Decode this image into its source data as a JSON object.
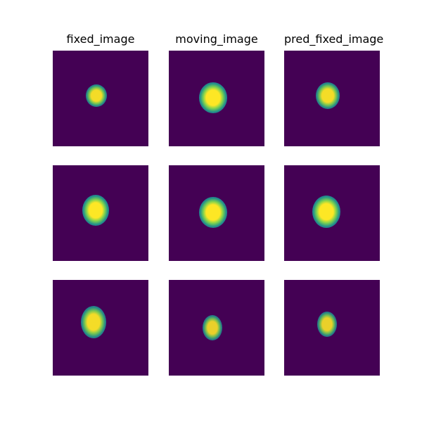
{
  "columns": [
    "fixed_image",
    "moving_image",
    "pred_fixed_image"
  ],
  "colormap": {
    "name": "viridis",
    "background": "#440154",
    "mid": "#21918c",
    "high": "#fde725"
  },
  "panels": [
    {
      "row": 0,
      "col": 0,
      "label": "fixed_image-row-1",
      "intensity": 0.95
    },
    {
      "row": 0,
      "col": 1,
      "label": "moving_image-row-1",
      "intensity": 1.0
    },
    {
      "row": 0,
      "col": 2,
      "label": "pred_fixed_image-row-1",
      "intensity": 0.95
    },
    {
      "row": 1,
      "col": 0,
      "label": "fixed_image-row-2",
      "intensity": 1.0
    },
    {
      "row": 1,
      "col": 1,
      "label": "moving_image-row-2",
      "intensity": 1.0
    },
    {
      "row": 1,
      "col": 2,
      "label": "pred_fixed_image-row-2",
      "intensity": 1.0
    },
    {
      "row": 2,
      "col": 0,
      "label": "fixed_image-row-3",
      "intensity": 0.95
    },
    {
      "row": 2,
      "col": 1,
      "label": "moving_image-row-3",
      "intensity": 0.9
    },
    {
      "row": 2,
      "col": 2,
      "label": "pred_fixed_image-row-3",
      "intensity": 0.9
    }
  ]
}
